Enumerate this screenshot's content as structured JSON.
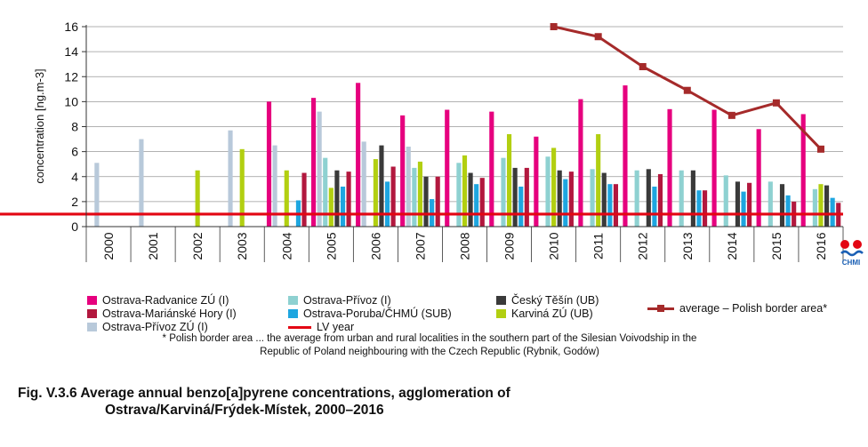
{
  "chart_data": {
    "type": "bar",
    "categories": [
      "2000",
      "2001",
      "2002",
      "2003",
      "2004",
      "2005",
      "2006",
      "2007",
      "2008",
      "2009",
      "2010",
      "2011",
      "2012",
      "2013",
      "2014",
      "2015",
      "2016"
    ],
    "ylabel": "concentration [ng.m-3]",
    "ylim": [
      0,
      16
    ],
    "yticks": [
      0,
      2,
      4,
      6,
      8,
      10,
      12,
      14,
      16
    ],
    "grid": "horizontal",
    "series": [
      {
        "name": "Ostrava-Radvanice ZÚ (I)",
        "color": "#e6007e",
        "values": [
          null,
          null,
          null,
          null,
          10.0,
          10.3,
          11.5,
          8.9,
          9.35,
          9.2,
          7.2,
          10.2,
          11.3,
          9.4,
          9.35,
          7.8,
          9.0
        ]
      },
      {
        "name": "Ostrava-Přívoz ZÚ (I)",
        "color": "#b8c9da",
        "values": [
          5.1,
          7.0,
          null,
          7.7,
          6.5,
          9.2,
          6.8,
          6.4,
          null,
          null,
          null,
          null,
          null,
          null,
          null,
          null,
          null
        ]
      },
      {
        "name": "Ostrava-Přívoz (I)",
        "color": "#8ed1d1",
        "values": [
          null,
          null,
          null,
          null,
          null,
          5.5,
          null,
          4.7,
          5.1,
          5.5,
          5.6,
          4.6,
          4.5,
          4.5,
          4.1,
          3.6,
          3.0
        ]
      },
      {
        "name": "Karviná ZÚ (UB)",
        "color": "#b2cf11",
        "values": [
          null,
          null,
          4.5,
          6.2,
          4.5,
          3.1,
          5.4,
          5.2,
          5.7,
          7.4,
          6.3,
          7.4,
          null,
          null,
          null,
          null,
          3.4
        ]
      },
      {
        "name": "Český Těšín (UB)",
        "color": "#3a3a3a",
        "values": [
          null,
          null,
          null,
          null,
          null,
          4.5,
          6.5,
          4.0,
          4.3,
          4.7,
          4.5,
          4.3,
          4.6,
          4.5,
          3.6,
          3.4,
          3.3
        ]
      },
      {
        "name": "Ostrava-Poruba/ČHMÚ (SUB)",
        "color": "#1ea6e0",
        "values": [
          null,
          null,
          null,
          null,
          2.1,
          3.2,
          3.6,
          2.2,
          3.4,
          3.2,
          3.8,
          3.4,
          3.2,
          2.9,
          2.8,
          2.5,
          2.3
        ]
      },
      {
        "name": "Ostrava-Mariánské Hory (I)",
        "color": "#b2183e",
        "values": [
          null,
          null,
          null,
          null,
          4.3,
          4.4,
          4.8,
          4.0,
          3.9,
          4.7,
          4.4,
          3.4,
          4.2,
          2.9,
          3.5,
          2.0,
          1.9
        ]
      }
    ],
    "average_line": {
      "name": "average  – Polish border area*",
      "color": "#a52a2a",
      "categories": [
        "2010",
        "2011",
        "2012",
        "2013",
        "2014",
        "2015",
        "2016"
      ],
      "values": [
        16.0,
        15.2,
        12.8,
        10.9,
        8.9,
        9.9,
        6.2
      ]
    },
    "lv_line": {
      "name": "LV year",
      "value": 1,
      "color": "#e30613"
    },
    "legend_location": "bottom"
  },
  "footnote": {
    "line1": "* Polish border area ... the average from urban and rural localities in the southern part of the Silesian Voivodship in the",
    "line2": "Republic of Poland neighbouring with the Czech Republic (Rybnik, Godów)"
  },
  "figure_title": {
    "line1": "Fig. V.3.6  Average annual benzo[a]pyrene concentrations, agglomeration of",
    "line2": "Ostrava/Karviná/Frýdek-Místek, 2000–2016"
  },
  "logo": {
    "text": "CHMI"
  }
}
